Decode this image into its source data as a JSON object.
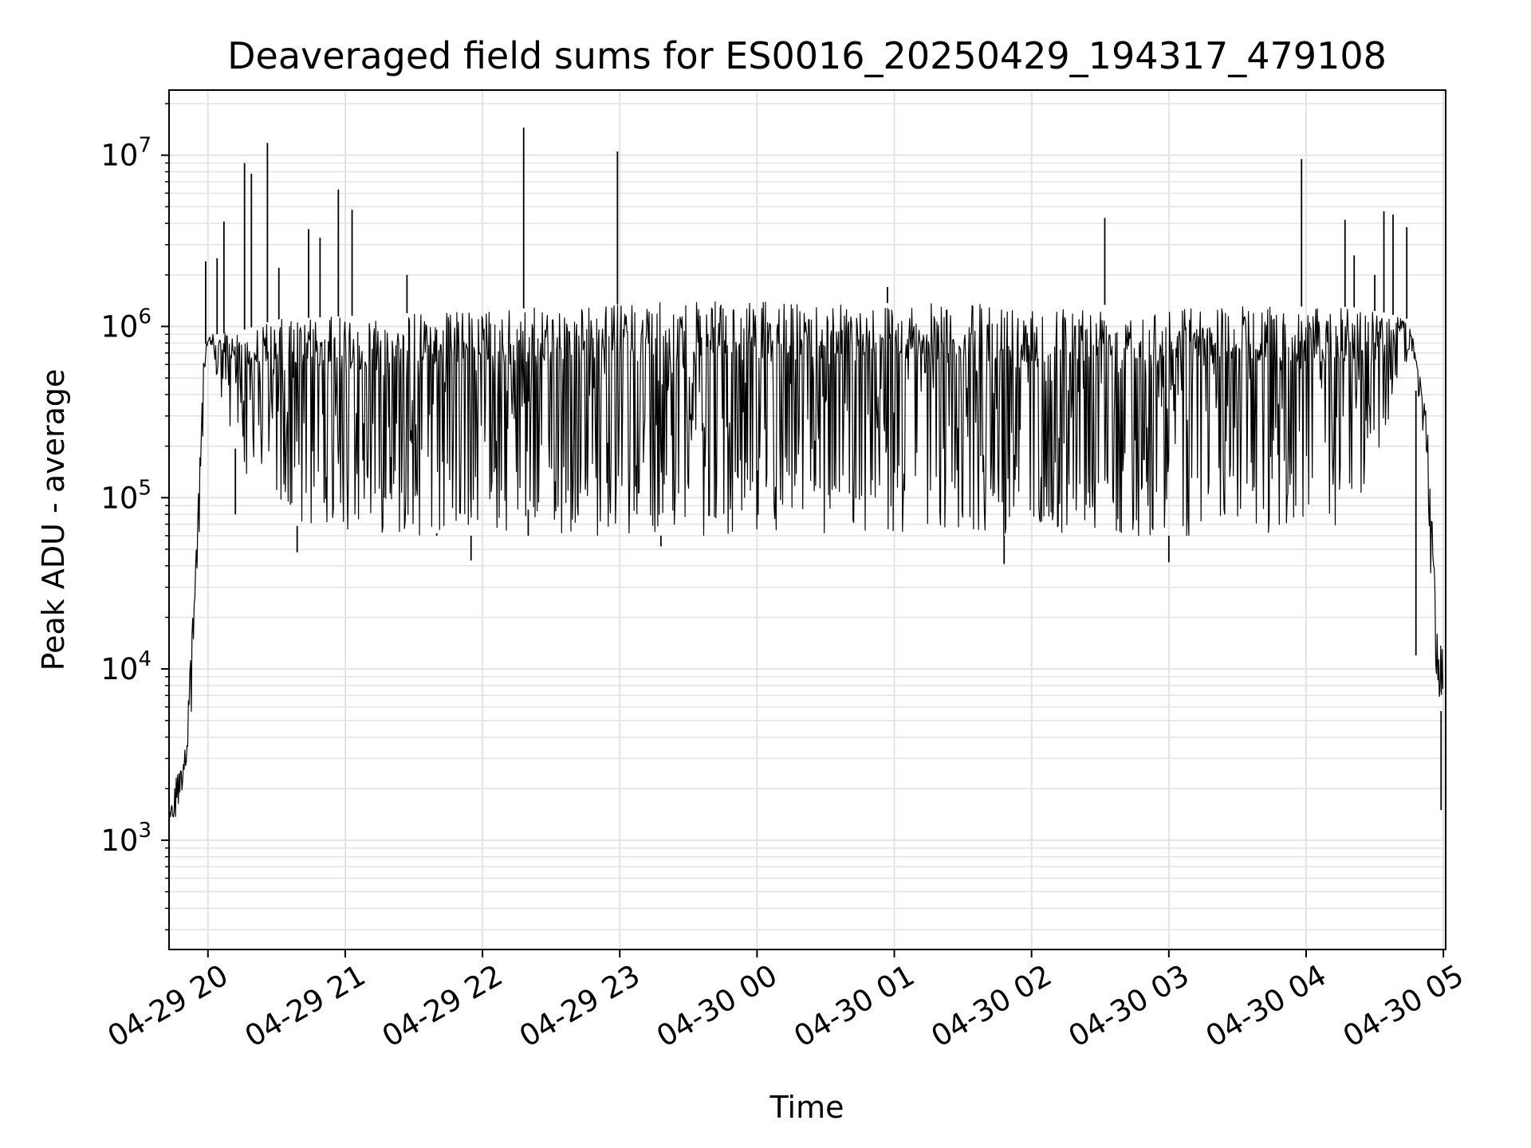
{
  "chart_data": {
    "type": "line",
    "title": "Deaveraged field sums for ES0016_20250429_194317_479108",
    "xlabel": "Time",
    "ylabel": "Peak ADU - average",
    "yscale": "log",
    "ylim": [
      230,
      24000000
    ],
    "xlim": [
      "2025-04-29 19:43",
      "2025-04-30 05:01"
    ],
    "grid": true,
    "line_color": "#000000",
    "grid_color": "#e3e3e3",
    "x_ticks": [
      {
        "t": "2025-04-29 20:00",
        "label": "04-29 20"
      },
      {
        "t": "2025-04-29 21:00",
        "label": "04-29 21"
      },
      {
        "t": "2025-04-29 22:00",
        "label": "04-29 22"
      },
      {
        "t": "2025-04-29 23:00",
        "label": "04-29 23"
      },
      {
        "t": "2025-04-30 00:00",
        "label": "04-30 00"
      },
      {
        "t": "2025-04-30 01:00",
        "label": "04-30 01"
      },
      {
        "t": "2025-04-30 02:00",
        "label": "04-30 02"
      },
      {
        "t": "2025-04-30 03:00",
        "label": "04-30 03"
      },
      {
        "t": "2025-04-30 04:00",
        "label": "04-30 04"
      },
      {
        "t": "2025-04-30 05:00",
        "label": "04-30 05"
      }
    ],
    "y_ticks": [
      {
        "value": 1000,
        "base": "10",
        "exp": "3"
      },
      {
        "value": 10000,
        "base": "10",
        "exp": "4"
      },
      {
        "value": 100000,
        "base": "10",
        "exp": "5"
      },
      {
        "value": 1000000,
        "base": "10",
        "exp": "6"
      },
      {
        "value": 10000000,
        "base": "10",
        "exp": "7"
      }
    ],
    "series": [
      {
        "name": "",
        "envelope": [
          {
            "t": "2025-04-29 19:43",
            "low": 900,
            "high": 1500
          },
          {
            "t": "2025-04-29 19:46",
            "low": 1200,
            "high": 2500
          },
          {
            "t": "2025-04-29 19:49",
            "low": 2000,
            "high": 2700
          },
          {
            "t": "2025-04-29 19:52",
            "low": 2500,
            "high": 9000
          },
          {
            "t": "2025-04-29 19:55",
            "low": 20000,
            "high": 60000
          },
          {
            "t": "2025-04-29 19:58",
            "low": 250000,
            "high": 700000
          },
          {
            "t": "2025-04-29 20:00",
            "low": 600000,
            "high": 900000
          },
          {
            "t": "2025-04-29 20:05",
            "low": 350000,
            "high": 900000
          },
          {
            "t": "2025-04-29 20:15",
            "low": 150000,
            "high": 950000
          },
          {
            "t": "2025-04-29 20:30",
            "low": 70000,
            "high": 1100000
          },
          {
            "t": "2025-04-29 21:30",
            "low": 60000,
            "high": 1200000
          },
          {
            "t": "2025-04-29 23:30",
            "low": 60000,
            "high": 1400000
          },
          {
            "t": "2025-04-30 04:20",
            "low": 60000,
            "high": 1300000
          },
          {
            "t": "2025-04-30 04:35",
            "low": 250000,
            "high": 1200000
          },
          {
            "t": "2025-04-30 04:45",
            "low": 700000,
            "high": 1100000
          },
          {
            "t": "2025-04-30 04:50",
            "low": 300000,
            "high": 500000
          },
          {
            "t": "2025-04-30 04:53",
            "low": 120000,
            "high": 280000
          },
          {
            "t": "2025-04-30 04:55",
            "low": 20000,
            "high": 80000
          },
          {
            "t": "2025-04-30 04:57",
            "low": 9000,
            "high": 20000
          },
          {
            "t": "2025-04-30 05:00",
            "low": 4500,
            "high": 12000
          }
        ],
        "spikes": [
          {
            "t": "2025-04-29 19:59",
            "value": 2400000
          },
          {
            "t": "2025-04-29 20:04",
            "value": 2500000
          },
          {
            "t": "2025-04-29 20:07",
            "value": 4100000
          },
          {
            "t": "2025-04-29 20:16",
            "value": 9000000
          },
          {
            "t": "2025-04-29 20:19",
            "value": 7800000
          },
          {
            "t": "2025-04-29 20:26",
            "value": 11800000
          },
          {
            "t": "2025-04-29 20:31",
            "value": 2200000
          },
          {
            "t": "2025-04-29 20:44",
            "value": 3700000
          },
          {
            "t": "2025-04-29 20:49",
            "value": 3300000
          },
          {
            "t": "2025-04-29 20:57",
            "value": 6300000
          },
          {
            "t": "2025-04-29 21:03",
            "value": 4800000
          },
          {
            "t": "2025-04-29 21:27",
            "value": 2000000
          },
          {
            "t": "2025-04-29 22:18",
            "value": 14500000
          },
          {
            "t": "2025-04-29 22:59",
            "value": 10500000
          },
          {
            "t": "2025-04-30 00:57",
            "value": 1700000
          },
          {
            "t": "2025-04-30 02:32",
            "value": 4300000
          },
          {
            "t": "2025-04-30 03:58",
            "value": 9500000
          },
          {
            "t": "2025-04-30 04:17",
            "value": 4200000
          },
          {
            "t": "2025-04-30 04:21",
            "value": 2600000
          },
          {
            "t": "2025-04-30 04:30",
            "value": 2000000
          },
          {
            "t": "2025-04-30 04:34",
            "value": 4700000
          },
          {
            "t": "2025-04-30 04:38",
            "value": 4500000
          },
          {
            "t": "2025-04-30 04:44",
            "value": 3800000
          }
        ],
        "dips": [
          {
            "t": "2025-04-29 20:12",
            "value": 80000
          },
          {
            "t": "2025-04-29 20:39",
            "value": 48000
          },
          {
            "t": "2025-04-29 21:40",
            "value": 62000
          },
          {
            "t": "2025-04-29 21:55",
            "value": 43000
          },
          {
            "t": "2025-04-29 22:20",
            "value": 85000
          },
          {
            "t": "2025-04-29 23:18",
            "value": 52000
          },
          {
            "t": "2025-04-30 01:48",
            "value": 41000
          },
          {
            "t": "2025-04-30 03:00",
            "value": 42000
          },
          {
            "t": "2025-04-30 04:48",
            "value": 12000
          },
          {
            "t": "2025-04-30 04:59",
            "value": 1500
          }
        ]
      }
    ]
  }
}
